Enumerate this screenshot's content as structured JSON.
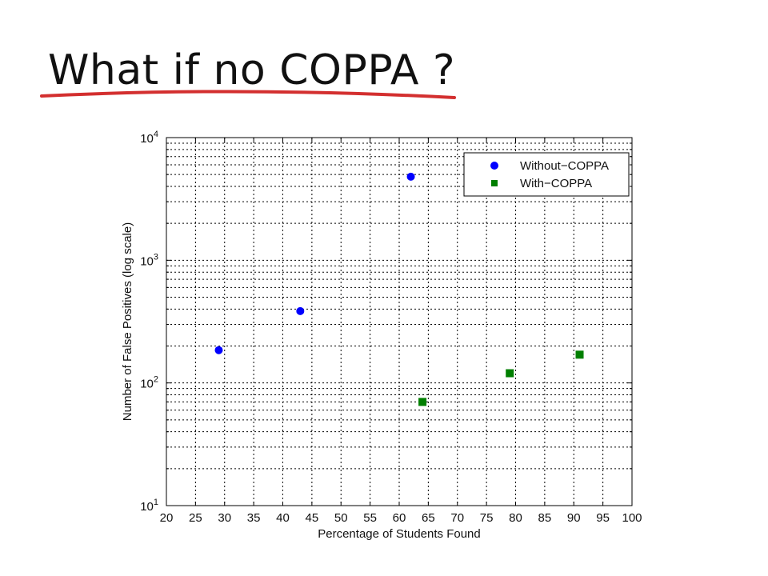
{
  "slide": {
    "title": "What if no COPPA ?",
    "accent_color": "#d32f2f"
  },
  "chart_data": {
    "type": "scatter",
    "xlabel": "Percentage of Students Found",
    "ylabel": "Number of False Positives (log scale)",
    "xlim": [
      20,
      100
    ],
    "ylim": [
      10,
      10000
    ],
    "y_scale": "log",
    "x_ticks": [
      20,
      25,
      30,
      35,
      40,
      45,
      50,
      55,
      60,
      65,
      70,
      75,
      80,
      85,
      90,
      95,
      100
    ],
    "y_ticks": [
      {
        "base": "10",
        "exp": "1",
        "value": 10
      },
      {
        "base": "10",
        "exp": "2",
        "value": 100
      },
      {
        "base": "10",
        "exp": "3",
        "value": 1000
      },
      {
        "base": "10",
        "exp": "4",
        "value": 10000
      }
    ],
    "grid": true,
    "grid_style": "dotted",
    "legend_position": "top-right",
    "series": [
      {
        "name": "Without−COPPA",
        "marker": "circle",
        "color": "#0000ff",
        "points": [
          {
            "x": 29,
            "y": 185
          },
          {
            "x": 43,
            "y": 385
          },
          {
            "x": 62,
            "y": 4800
          }
        ]
      },
      {
        "name": "With−COPPA",
        "marker": "square",
        "color": "#007f00",
        "points": [
          {
            "x": 64,
            "y": 70
          },
          {
            "x": 79,
            "y": 120
          },
          {
            "x": 91,
            "y": 170
          }
        ]
      }
    ]
  }
}
